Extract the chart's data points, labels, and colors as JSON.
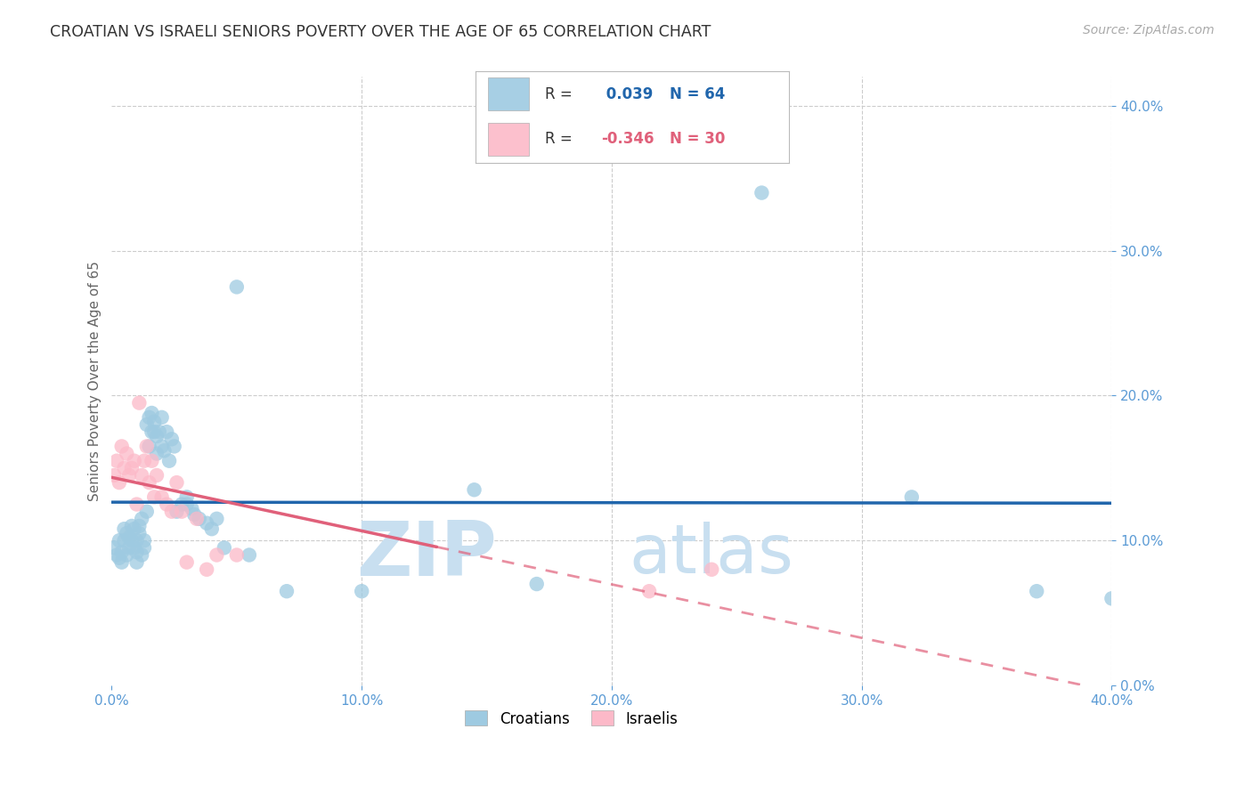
{
  "title": "CROATIAN VS ISRAELI SENIORS POVERTY OVER THE AGE OF 65 CORRELATION CHART",
  "source": "Source: ZipAtlas.com",
  "ylabel_label": "Seniors Poverty Over the Age of 65",
  "xlim": [
    0.0,
    0.4
  ],
  "ylim": [
    0.0,
    0.42
  ],
  "croatian_R": 0.039,
  "croatian_N": 64,
  "israeli_R": -0.346,
  "israeli_N": 30,
  "croatian_color": "#9ecae1",
  "israeli_color": "#fcb9c8",
  "trendline_croatian_color": "#2166ac",
  "trendline_israeli_color": "#e0607a",
  "background_color": "#ffffff",
  "grid_color": "#cccccc",
  "watermark_zip_color": "#c8dff0",
  "watermark_atlas_color": "#c8dff0",
  "tick_label_color": "#5b9bd5",
  "croatians_x": [
    0.001,
    0.002,
    0.003,
    0.003,
    0.004,
    0.004,
    0.005,
    0.005,
    0.006,
    0.006,
    0.007,
    0.007,
    0.008,
    0.008,
    0.009,
    0.009,
    0.01,
    0.01,
    0.01,
    0.011,
    0.011,
    0.012,
    0.012,
    0.013,
    0.013,
    0.014,
    0.014,
    0.015,
    0.015,
    0.016,
    0.016,
    0.017,
    0.017,
    0.018,
    0.018,
    0.019,
    0.02,
    0.02,
    0.021,
    0.022,
    0.023,
    0.024,
    0.025,
    0.026,
    0.028,
    0.03,
    0.03,
    0.032,
    0.033,
    0.035,
    0.038,
    0.04,
    0.042,
    0.045,
    0.05,
    0.055,
    0.07,
    0.1,
    0.145,
    0.17,
    0.26,
    0.32,
    0.37,
    0.4
  ],
  "croatians_y": [
    0.095,
    0.09,
    0.1,
    0.088,
    0.085,
    0.092,
    0.1,
    0.108,
    0.09,
    0.105,
    0.095,
    0.102,
    0.1,
    0.11,
    0.095,
    0.108,
    0.1,
    0.092,
    0.085,
    0.105,
    0.11,
    0.09,
    0.115,
    0.095,
    0.1,
    0.12,
    0.18,
    0.165,
    0.185,
    0.175,
    0.188,
    0.175,
    0.182,
    0.172,
    0.16,
    0.175,
    0.185,
    0.165,
    0.162,
    0.175,
    0.155,
    0.17,
    0.165,
    0.12,
    0.125,
    0.125,
    0.13,
    0.122,
    0.118,
    0.115,
    0.112,
    0.108,
    0.115,
    0.095,
    0.275,
    0.09,
    0.065,
    0.065,
    0.135,
    0.07,
    0.34,
    0.13,
    0.065,
    0.06
  ],
  "israelis_x": [
    0.001,
    0.002,
    0.003,
    0.004,
    0.005,
    0.006,
    0.007,
    0.008,
    0.009,
    0.01,
    0.011,
    0.012,
    0.013,
    0.014,
    0.015,
    0.016,
    0.017,
    0.018,
    0.02,
    0.022,
    0.024,
    0.026,
    0.028,
    0.03,
    0.034,
    0.038,
    0.042,
    0.05,
    0.215,
    0.24
  ],
  "israelis_y": [
    0.145,
    0.155,
    0.14,
    0.165,
    0.15,
    0.16,
    0.145,
    0.15,
    0.155,
    0.125,
    0.195,
    0.145,
    0.155,
    0.165,
    0.14,
    0.155,
    0.13,
    0.145,
    0.13,
    0.125,
    0.12,
    0.14,
    0.12,
    0.085,
    0.115,
    0.08,
    0.09,
    0.09,
    0.065,
    0.08
  ]
}
